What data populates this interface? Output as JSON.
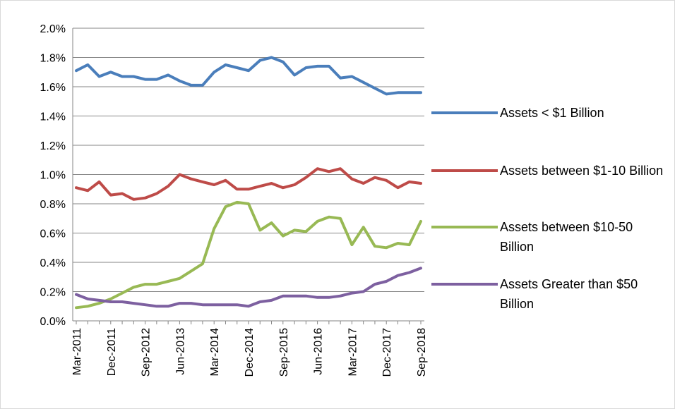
{
  "chart_data": {
    "type": "line",
    "categories": [
      "Mar-2011",
      null,
      null,
      "Dec-2011",
      null,
      null,
      "Sep-2012",
      null,
      null,
      "Jun-2013",
      null,
      null,
      "Mar-2014",
      null,
      null,
      "Dec-2014",
      null,
      null,
      "Sep-2015",
      null,
      null,
      "Jun-2016",
      null,
      null,
      "Mar-2017",
      null,
      null,
      "Dec-2017",
      null,
      null,
      "Sep-2018"
    ],
    "series": [
      {
        "name": "Assets < $1 Billion",
        "color": "#4a7ebb",
        "values": [
          1.71,
          1.75,
          1.67,
          1.7,
          1.67,
          1.67,
          1.65,
          1.65,
          1.68,
          1.64,
          1.61,
          1.61,
          1.7,
          1.75,
          1.73,
          1.71,
          1.78,
          1.8,
          1.77,
          1.68,
          1.73,
          1.74,
          1.74,
          1.66,
          1.67,
          1.63,
          1.59,
          1.55,
          1.56,
          1.56,
          1.56
        ]
      },
      {
        "name": "Assets between $1-10 Billion",
        "color": "#be4b48",
        "values": [
          0.91,
          0.89,
          0.95,
          0.86,
          0.87,
          0.83,
          0.84,
          0.87,
          0.92,
          1.0,
          0.97,
          0.95,
          0.93,
          0.96,
          0.9,
          0.9,
          0.92,
          0.94,
          0.91,
          0.93,
          0.98,
          1.04,
          1.02,
          1.04,
          0.97,
          0.94,
          0.98,
          0.96,
          0.91,
          0.95,
          0.94
        ]
      },
      {
        "name": "Assets between $10-50 Billion",
        "color": "#98b954",
        "values": [
          0.09,
          0.1,
          0.12,
          0.15,
          0.19,
          0.23,
          0.25,
          0.25,
          0.27,
          0.29,
          0.34,
          0.39,
          0.63,
          0.78,
          0.81,
          0.8,
          0.62,
          0.67,
          0.58,
          0.62,
          0.61,
          0.68,
          0.71,
          0.7,
          0.52,
          0.64,
          0.51,
          0.5,
          0.53,
          0.52,
          0.68
        ]
      },
      {
        "name": "Assets Greater than $50 Billion",
        "color": "#7d60a0",
        "values": [
          0.18,
          0.15,
          0.14,
          0.13,
          0.13,
          0.12,
          0.11,
          0.1,
          0.1,
          0.12,
          0.12,
          0.11,
          0.11,
          0.11,
          0.11,
          0.1,
          0.13,
          0.14,
          0.17,
          0.17,
          0.17,
          0.16,
          0.16,
          0.17,
          0.19,
          0.2,
          0.25,
          0.27,
          0.31,
          0.33,
          0.36
        ]
      }
    ],
    "ylim": [
      0,
      2
    ],
    "yticks": [
      {
        "value": 0,
        "label": "0.0%"
      },
      {
        "value": 0.2,
        "label": "0.2%"
      },
      {
        "value": 0.4,
        "label": "0.4%"
      },
      {
        "value": 0.6,
        "label": "0.6%"
      },
      {
        "value": 0.8,
        "label": "0.8%"
      },
      {
        "value": 1.0,
        "label": "1.0%"
      },
      {
        "value": 1.2,
        "label": "1.2%"
      },
      {
        "value": 1.4,
        "label": "1.4%"
      },
      {
        "value": 1.6,
        "label": "1.6%"
      },
      {
        "value": 1.8,
        "label": "1.8%"
      },
      {
        "value": 2.0,
        "label": "2.0%"
      }
    ],
    "grid": true,
    "legend": "right"
  }
}
